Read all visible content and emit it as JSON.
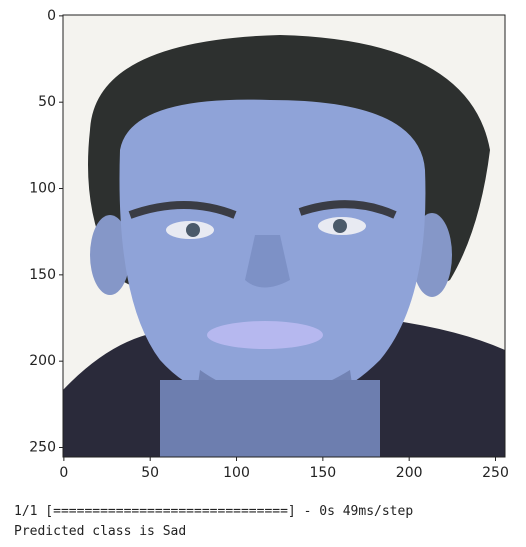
{
  "chart_data": {
    "type": "image",
    "xlim": [
      -0.5,
      255.5
    ],
    "ylim": [
      255.5,
      -0.5
    ],
    "xticks": [
      0,
      50,
      100,
      150,
      200,
      250
    ],
    "yticks": [
      0,
      50,
      100,
      150,
      200,
      250
    ]
  },
  "output": {
    "progress": "1/1 [==============================] - 0s 49ms/step",
    "prediction": "Predicted class is Sad"
  }
}
